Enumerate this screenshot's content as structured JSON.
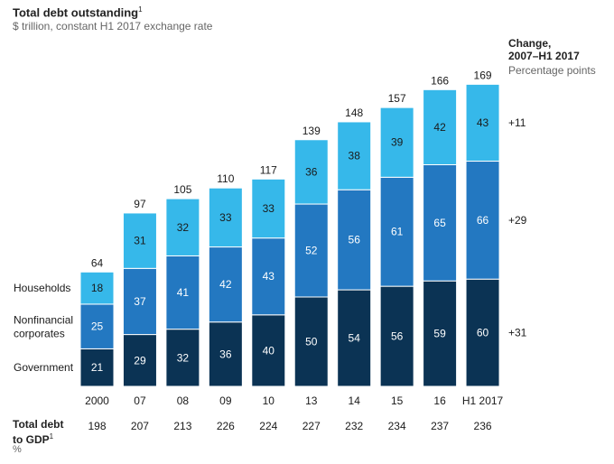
{
  "header": {
    "title": "Total debt outstanding",
    "title_footnote": "1",
    "subtitle": "$ trillion, constant H1 2017 exchange rate"
  },
  "change_header": {
    "title_line1": "Change,",
    "title_line2": "2007–H1 2017",
    "subtitle": "Percentage points"
  },
  "gdp_row": {
    "title_line1": "Total debt",
    "title_line2": "to GDP",
    "footnote": "1",
    "unit": "%"
  },
  "colors": {
    "government": "#0b3354",
    "nonfinancial": "#2378c1",
    "households": "#36b8ea",
    "separator": "#ffffff"
  },
  "chart_data": {
    "type": "bar",
    "stacked": true,
    "categories": [
      "2000",
      "07",
      "08",
      "09",
      "10",
      "13",
      "14",
      "15",
      "16",
      "H1 2017"
    ],
    "series": [
      {
        "name": "Government",
        "key": "government",
        "values": [
          21,
          29,
          32,
          36,
          40,
          50,
          54,
          56,
          59,
          60
        ]
      },
      {
        "name": "Nonfinancial corporates",
        "key": "nonfinancial",
        "values": [
          25,
          37,
          41,
          42,
          43,
          52,
          56,
          61,
          65,
          66
        ]
      },
      {
        "name": "Households",
        "key": "households",
        "values": [
          18,
          31,
          32,
          33,
          33,
          36,
          38,
          39,
          42,
          43
        ]
      }
    ],
    "totals": [
      64,
      97,
      105,
      110,
      117,
      139,
      148,
      157,
      166,
      169
    ],
    "debt_to_gdp": [
      198,
      207,
      213,
      226,
      224,
      227,
      232,
      234,
      237,
      236
    ],
    "change_2007_h1_2017": {
      "households": "+11",
      "nonfinancial": "+29",
      "government": "+31"
    },
    "legend": {
      "households": "Households",
      "nonfinancial_line1": "Nonfinancial",
      "nonfinancial_line2": "corporates",
      "government": "Government"
    },
    "ylim": [
      0,
      169
    ]
  }
}
